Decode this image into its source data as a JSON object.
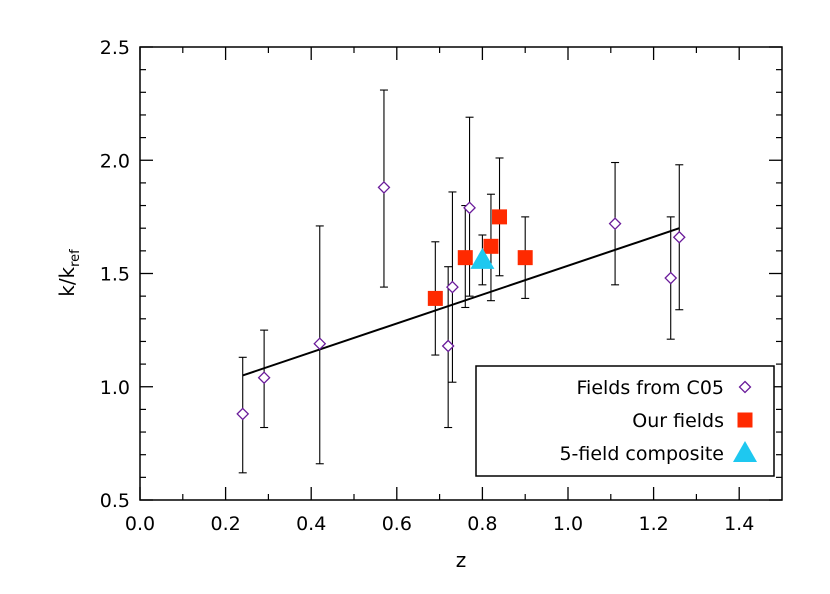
{
  "chart_data": {
    "type": "scatter",
    "xlabel": "z",
    "ylabel": {
      "base": "k/k",
      "sub": "ref"
    },
    "xlim": [
      0.0,
      1.5
    ],
    "ylim": [
      0.5,
      2.5
    ],
    "x_ticks": [
      0.0,
      0.2,
      0.4,
      0.6,
      0.8,
      1.0,
      1.2,
      1.4
    ],
    "x_tick_labels": [
      "0.0",
      "0.2",
      "0.4",
      "0.6",
      "0.8",
      "1.0",
      "1.2",
      "1.4"
    ],
    "y_ticks": [
      0.5,
      1.0,
      1.5,
      2.0,
      2.5
    ],
    "y_tick_labels": [
      "0.5",
      "1.0",
      "1.5",
      "2.0",
      "2.5"
    ],
    "legend_position": "bottom-right",
    "series": [
      {
        "name": "Fields from C05",
        "marker": "diamond-open",
        "color": "#6a1b9a",
        "points": [
          {
            "x": 0.24,
            "y": 0.88,
            "lo": 0.62,
            "hi": 1.13
          },
          {
            "x": 0.29,
            "y": 1.04,
            "lo": 0.82,
            "hi": 1.25
          },
          {
            "x": 0.42,
            "y": 1.19,
            "lo": 0.66,
            "hi": 1.71
          },
          {
            "x": 0.57,
            "y": 1.88,
            "lo": 1.44,
            "hi": 2.31
          },
          {
            "x": 0.72,
            "y": 1.18,
            "lo": 0.82,
            "hi": 1.53
          },
          {
            "x": 0.73,
            "y": 1.44,
            "lo": 1.02,
            "hi": 1.86
          },
          {
            "x": 0.77,
            "y": 1.79,
            "lo": 1.4,
            "hi": 2.19
          },
          {
            "x": 1.11,
            "y": 1.72,
            "lo": 1.45,
            "hi": 1.99
          },
          {
            "x": 1.24,
            "y": 1.48,
            "lo": 1.21,
            "hi": 1.75
          },
          {
            "x": 1.26,
            "y": 1.66,
            "lo": 1.34,
            "hi": 1.98
          }
        ]
      },
      {
        "name": "Our fields",
        "marker": "square-filled",
        "color": "#ff2a00",
        "points": [
          {
            "x": 0.69,
            "y": 1.39,
            "lo": 1.14,
            "hi": 1.64
          },
          {
            "x": 0.76,
            "y": 1.57,
            "lo": 1.35,
            "hi": 1.8
          },
          {
            "x": 0.82,
            "y": 1.62,
            "lo": 1.38,
            "hi": 1.85
          },
          {
            "x": 0.84,
            "y": 1.75,
            "lo": 1.49,
            "hi": 2.01
          },
          {
            "x": 0.9,
            "y": 1.57,
            "lo": 1.39,
            "hi": 1.75
          }
        ]
      },
      {
        "name": "5-field composite",
        "marker": "triangle-filled",
        "color": "#1ec8f0",
        "points": [
          {
            "x": 0.8,
            "y": 1.56,
            "lo": 1.45,
            "hi": 1.67
          }
        ]
      }
    ],
    "fit_line": {
      "x": [
        0.24,
        1.26
      ],
      "y": [
        1.05,
        1.7
      ]
    }
  }
}
